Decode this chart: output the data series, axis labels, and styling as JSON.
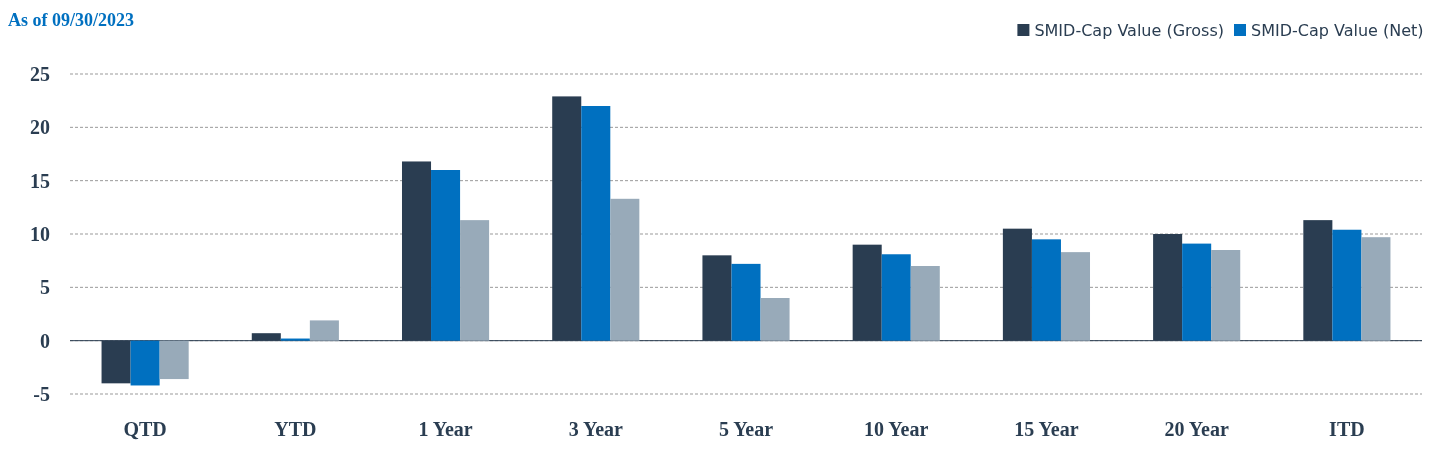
{
  "chart_data": {
    "type": "bar",
    "title": "As of 09/30/2023",
    "categories": [
      "QTD",
      "YTD",
      "1 Year",
      "3 Year",
      "5 Year",
      "10 Year",
      "15 Year",
      "20 Year",
      "ITD"
    ],
    "series": [
      {
        "name": "SMID-Cap Value (Gross)",
        "color": "#2a3d51",
        "values": [
          -4.0,
          0.7,
          16.8,
          22.9,
          8.0,
          9.0,
          10.5,
          10.0,
          11.3
        ]
      },
      {
        "name": "SMID-Cap Value (Net)",
        "color": "#0070c0",
        "values": [
          -4.2,
          0.2,
          16.0,
          22.0,
          7.2,
          8.1,
          9.5,
          9.1,
          10.4
        ]
      },
      {
        "color": "#98aab9",
        "values": [
          -3.6,
          1.9,
          11.3,
          13.3,
          4.0,
          7.0,
          8.3,
          8.5,
          9.7
        ]
      }
    ],
    "ylim": [
      -5,
      25
    ],
    "yticks": [
      -5,
      0,
      5,
      10,
      15,
      20,
      25
    ],
    "grid": "y",
    "legend": "top right"
  }
}
